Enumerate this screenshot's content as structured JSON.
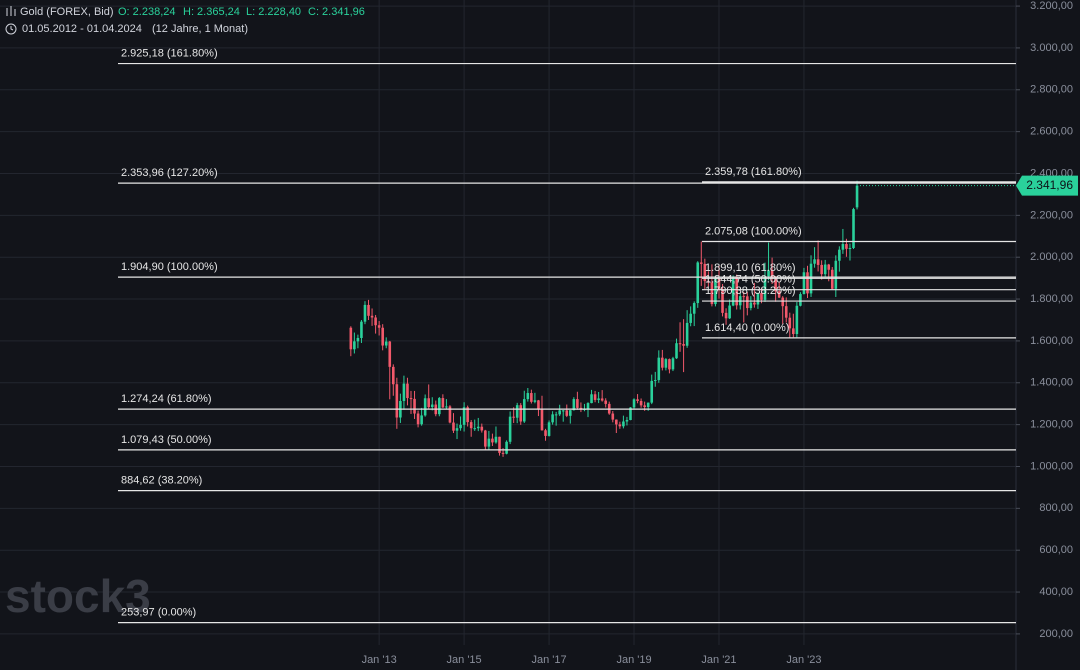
{
  "header": {
    "symbol": "Gold (FOREX, Bid)",
    "open": "O: 2.238,24",
    "high": "H: 2.365,24",
    "low": "L: 2.228,40",
    "close": "C: 2.341,96",
    "range": "01.05.2012 - 01.04.2024",
    "span": "(12 Jahre, 1 Monat)"
  },
  "watermark": "stock3",
  "chart_data": {
    "type": "candlestick",
    "up_color": "#2ad19b",
    "down_color": "#f2596b",
    "xlim": [
      -99.1,
      187.9
    ],
    "xticks": [
      {
        "value": 8,
        "label": "Jan '13"
      },
      {
        "value": 32,
        "label": "Jan '15"
      },
      {
        "value": 56,
        "label": "Jan '17"
      },
      {
        "value": 80,
        "label": "Jan '19"
      },
      {
        "value": 104,
        "label": "Jan '21"
      },
      {
        "value": 128,
        "label": "Jan '23"
      }
    ],
    "ylim": [
      147,
      3229
    ],
    "yticks": [
      {
        "value": 200,
        "label": "200,00"
      },
      {
        "value": 400,
        "label": "400,00"
      },
      {
        "value": 600,
        "label": "600,00"
      },
      {
        "value": 800,
        "label": "800,00"
      },
      {
        "value": 1000,
        "label": "1.000,00"
      },
      {
        "value": 1200,
        "label": "1.200,00"
      },
      {
        "value": 1400,
        "label": "1.400,00"
      },
      {
        "value": 1600,
        "label": "1.600,00"
      },
      {
        "value": 1800,
        "label": "1.800,00"
      },
      {
        "value": 2000,
        "label": "2.000,00"
      },
      {
        "value": 2200,
        "label": "2.200,00"
      },
      {
        "value": 2400,
        "label": "2.400,00"
      },
      {
        "value": 2600,
        "label": "2.600,00"
      },
      {
        "value": 2800,
        "label": "2.800,00"
      },
      {
        "value": 3000,
        "label": "3.000,00"
      },
      {
        "value": 3200,
        "label": "3.200,00"
      }
    ],
    "grid": true,
    "last_price": {
      "value": 2341.96,
      "label": "2.341,96"
    },
    "fib_sets": [
      {
        "levels": [
          {
            "value": 2925.18,
            "label": "2.925,18 (161.80%)"
          },
          {
            "value": 2353.96,
            "label": "2.353,96 (127.20%)"
          },
          {
            "value": 1904.9,
            "label": "1.904,90 (100.00%)"
          },
          {
            "value": 1274.24,
            "label": "1.274,24 (61.80%)"
          },
          {
            "value": 1079.43,
            "label": "1.079,43 (50.00%)"
          },
          {
            "value": 884.62,
            "label": "884,62 (38.20%)"
          },
          {
            "value": 253.97,
            "label": "253,97 (0.00%)"
          }
        ]
      },
      {
        "levels": [
          {
            "value": 2359.78,
            "label": "2.359,78 (161.80%)"
          },
          {
            "value": 2075.08,
            "label": "2.075,08 (100.00%)"
          },
          {
            "value": 1899.1,
            "label": "1.899,10 (61.80%)"
          },
          {
            "value": 1844.74,
            "label": "1.844,74 (50.00%)"
          },
          {
            "value": 1790.38,
            "label": "1.790,38 (38.20%)"
          },
          {
            "value": 1614.4,
            "label": "1.614,40 (0.00%)"
          }
        ]
      }
    ],
    "ohlc": [
      [
        1663,
        1670,
        1527,
        1560
      ],
      [
        1560,
        1640,
        1540,
        1598
      ],
      [
        1598,
        1630,
        1565,
        1614
      ],
      [
        1614,
        1700,
        1590,
        1692
      ],
      [
        1692,
        1790,
        1680,
        1772
      ],
      [
        1772,
        1796,
        1700,
        1720
      ],
      [
        1720,
        1755,
        1672,
        1712
      ],
      [
        1712,
        1724,
        1635,
        1675
      ],
      [
        1675,
        1695,
        1626,
        1663
      ],
      [
        1663,
        1680,
        1555,
        1578
      ],
      [
        1578,
        1617,
        1565,
        1597
      ],
      [
        1597,
        1600,
        1321,
        1476
      ],
      [
        1476,
        1488,
        1338,
        1393
      ],
      [
        1393,
        1424,
        1180,
        1234
      ],
      [
        1234,
        1348,
        1208,
        1313
      ],
      [
        1313,
        1434,
        1271,
        1396
      ],
      [
        1396,
        1424,
        1292,
        1327
      ],
      [
        1327,
        1361,
        1251,
        1323
      ],
      [
        1323,
        1361,
        1227,
        1253
      ],
      [
        1253,
        1267,
        1187,
        1202
      ],
      [
        1202,
        1280,
        1195,
        1244
      ],
      [
        1244,
        1344,
        1238,
        1326
      ],
      [
        1326,
        1392,
        1277,
        1284
      ],
      [
        1284,
        1331,
        1268,
        1296
      ],
      [
        1296,
        1315,
        1240,
        1250
      ],
      [
        1250,
        1332,
        1240,
        1327
      ],
      [
        1327,
        1345,
        1280,
        1282
      ],
      [
        1282,
        1322,
        1272,
        1287
      ],
      [
        1287,
        1293,
        1206,
        1210
      ],
      [
        1210,
        1255,
        1160,
        1171
      ],
      [
        1171,
        1205,
        1131,
        1183
      ],
      [
        1183,
        1239,
        1171,
        1199
      ],
      [
        1199,
        1307,
        1167,
        1283
      ],
      [
        1283,
        1291,
        1191,
        1212
      ],
      [
        1212,
        1222,
        1142,
        1183
      ],
      [
        1183,
        1224,
        1170,
        1183
      ],
      [
        1183,
        1232,
        1169,
        1190
      ],
      [
        1190,
        1205,
        1162,
        1172
      ],
      [
        1172,
        1175,
        1077,
        1095
      ],
      [
        1095,
        1170,
        1080,
        1133
      ],
      [
        1133,
        1157,
        1098,
        1115
      ],
      [
        1115,
        1191,
        1109,
        1142
      ],
      [
        1142,
        1142,
        1052,
        1065
      ],
      [
        1065,
        1088,
        1046,
        1061
      ],
      [
        1061,
        1125,
        1058,
        1118
      ],
      [
        1118,
        1263,
        1107,
        1238
      ],
      [
        1238,
        1283,
        1208,
        1233
      ],
      [
        1233,
        1304,
        1207,
        1293
      ],
      [
        1293,
        1303,
        1199,
        1215
      ],
      [
        1215,
        1362,
        1208,
        1322
      ],
      [
        1322,
        1375,
        1310,
        1351
      ],
      [
        1351,
        1367,
        1301,
        1309
      ],
      [
        1309,
        1352,
        1302,
        1316
      ],
      [
        1316,
        1318,
        1241,
        1277
      ],
      [
        1277,
        1338,
        1171,
        1173
      ],
      [
        1173,
        1180,
        1123,
        1146
      ],
      [
        1146,
        1220,
        1143,
        1211
      ],
      [
        1211,
        1264,
        1200,
        1249
      ],
      [
        1249,
        1261,
        1195,
        1249
      ],
      [
        1249,
        1295,
        1241,
        1268
      ],
      [
        1268,
        1270,
        1214,
        1268
      ],
      [
        1268,
        1296,
        1236,
        1242
      ],
      [
        1242,
        1270,
        1205,
        1269
      ],
      [
        1269,
        1331,
        1267,
        1322
      ],
      [
        1322,
        1357,
        1271,
        1280
      ],
      [
        1280,
        1306,
        1260,
        1271
      ],
      [
        1271,
        1299,
        1264,
        1275
      ],
      [
        1275,
        1307,
        1236,
        1303
      ],
      [
        1303,
        1366,
        1302,
        1345
      ],
      [
        1345,
        1361,
        1307,
        1318
      ],
      [
        1318,
        1356,
        1303,
        1325
      ],
      [
        1325,
        1365,
        1310,
        1315
      ],
      [
        1315,
        1326,
        1282,
        1299
      ],
      [
        1299,
        1310,
        1247,
        1253
      ],
      [
        1253,
        1265,
        1211,
        1224
      ],
      [
        1224,
        1225,
        1160,
        1201
      ],
      [
        1201,
        1214,
        1180,
        1192
      ],
      [
        1192,
        1243,
        1182,
        1215
      ],
      [
        1215,
        1237,
        1196,
        1222
      ],
      [
        1222,
        1284,
        1221,
        1282
      ],
      [
        1282,
        1326,
        1276,
        1321
      ],
      [
        1321,
        1346,
        1302,
        1313
      ],
      [
        1313,
        1325,
        1281,
        1292
      ],
      [
        1292,
        1310,
        1266,
        1284
      ],
      [
        1284,
        1306,
        1266,
        1305
      ],
      [
        1305,
        1439,
        1298,
        1409
      ],
      [
        1409,
        1452,
        1381,
        1413
      ],
      [
        1413,
        1555,
        1400,
        1520
      ],
      [
        1520,
        1557,
        1459,
        1472
      ],
      [
        1472,
        1518,
        1459,
        1513
      ],
      [
        1513,
        1516,
        1445,
        1464
      ],
      [
        1464,
        1524,
        1456,
        1517
      ],
      [
        1517,
        1611,
        1514,
        1589
      ],
      [
        1589,
        1689,
        1548,
        1585
      ],
      [
        1585,
        1704,
        1451,
        1577
      ],
      [
        1577,
        1747,
        1567,
        1686
      ],
      [
        1686,
        1765,
        1670,
        1730
      ],
      [
        1730,
        1789,
        1671,
        1781
      ],
      [
        1781,
        1981,
        1758,
        1975
      ],
      [
        1975,
        2075,
        1863,
        1968
      ],
      [
        1968,
        1993,
        1848,
        1886
      ],
      [
        1886,
        1933,
        1860,
        1879
      ],
      [
        1879,
        1966,
        1765,
        1776
      ],
      [
        1776,
        1906,
        1765,
        1898
      ],
      [
        1898,
        1959,
        1802,
        1847
      ],
      [
        1847,
        1872,
        1717,
        1734
      ],
      [
        1734,
        1756,
        1677,
        1708
      ],
      [
        1708,
        1798,
        1705,
        1769
      ],
      [
        1769,
        1913,
        1766,
        1907
      ],
      [
        1907,
        1917,
        1750,
        1770
      ],
      [
        1770,
        1832,
        1750,
        1814
      ],
      [
        1814,
        1834,
        1688,
        1813
      ],
      [
        1813,
        1834,
        1722,
        1757
      ],
      [
        1757,
        1814,
        1746,
        1783
      ],
      [
        1783,
        1877,
        1759,
        1774
      ],
      [
        1774,
        1831,
        1753,
        1829
      ],
      [
        1829,
        1853,
        1780,
        1796
      ],
      [
        1796,
        1974,
        1786,
        1909
      ],
      [
        1909,
        2070,
        1890,
        1937
      ],
      [
        1937,
        1998,
        1872,
        1897
      ],
      [
        1897,
        1910,
        1787,
        1837
      ],
      [
        1837,
        1879,
        1805,
        1807
      ],
      [
        1807,
        1814,
        1681,
        1766
      ],
      [
        1766,
        1808,
        1688,
        1711
      ],
      [
        1711,
        1735,
        1615,
        1660
      ],
      [
        1660,
        1730,
        1617,
        1633
      ],
      [
        1633,
        1786,
        1617,
        1768
      ],
      [
        1768,
        1833,
        1765,
        1824
      ],
      [
        1824,
        1949,
        1822,
        1928
      ],
      [
        1928,
        1959,
        1805,
        1827
      ],
      [
        1827,
        2009,
        1810,
        1969
      ],
      [
        1969,
        2048,
        1950,
        1990
      ],
      [
        1990,
        2080,
        1932,
        1963
      ],
      [
        1963,
        1985,
        1893,
        1919
      ],
      [
        1919,
        1987,
        1903,
        1965
      ],
      [
        1965,
        1968,
        1885,
        1940
      ],
      [
        1940,
        1953,
        1847,
        1849
      ],
      [
        1849,
        2009,
        1810,
        1983
      ],
      [
        1983,
        2052,
        1931,
        2036
      ],
      [
        2036,
        2135,
        2016,
        2063
      ],
      [
        2063,
        2088,
        2002,
        2040
      ],
      [
        2040,
        2065,
        1984,
        2044
      ],
      [
        2044,
        2236,
        2039,
        2230
      ],
      [
        2238.24,
        2365.24,
        2228.4,
        2341.96
      ]
    ]
  }
}
